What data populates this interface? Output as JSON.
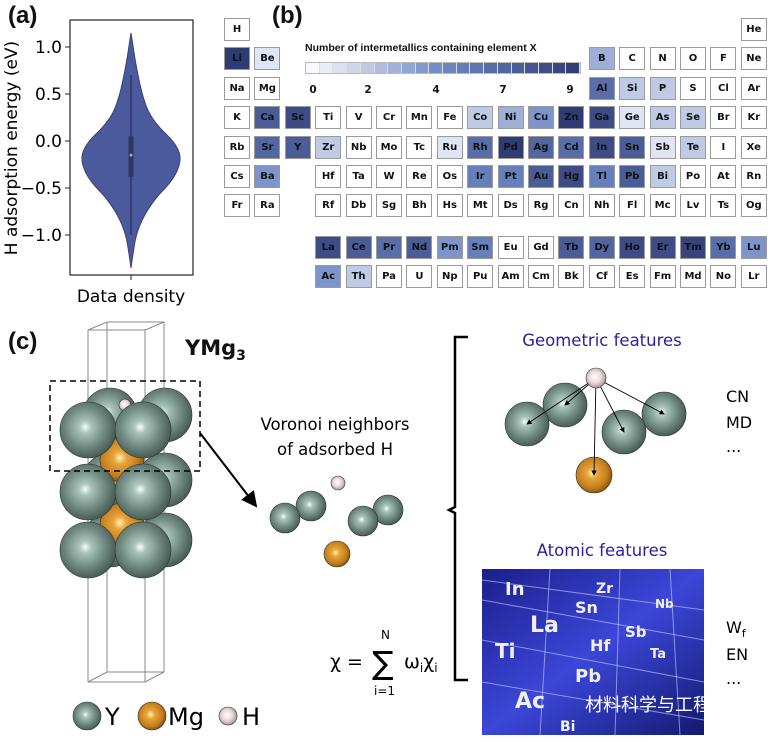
{
  "panels": {
    "a": "(a)",
    "b": "(b)",
    "c": "(c)"
  },
  "chart_data": {
    "type": "violin",
    "ylabel": "H adsorption energy (eV)",
    "xlabel": "Data density",
    "yticks": [
      "1.0",
      "0.5",
      "0.0",
      "−0.5",
      "−1.0"
    ],
    "ytick_values": [
      1.0,
      0.5,
      0.0,
      -0.5,
      -1.0
    ],
    "ylim": [
      -1.45,
      1.3
    ],
    "energy_range": [
      -1.35,
      1.15
    ],
    "median": -0.15,
    "iqr": [
      -0.38,
      0.05
    ],
    "whiskers": [
      -1.0,
      0.7
    ],
    "density_profile": [
      {
        "y": -1.35,
        "d": 0.0
      },
      {
        "y": -1.2,
        "d": 0.04
      },
      {
        "y": -1.0,
        "d": 0.1
      },
      {
        "y": -0.8,
        "d": 0.25
      },
      {
        "y": -0.6,
        "d": 0.5
      },
      {
        "y": -0.45,
        "d": 0.78
      },
      {
        "y": -0.3,
        "d": 0.95
      },
      {
        "y": -0.15,
        "d": 1.0
      },
      {
        "y": 0.0,
        "d": 0.85
      },
      {
        "y": 0.15,
        "d": 0.55
      },
      {
        "y": 0.3,
        "d": 0.35
      },
      {
        "y": 0.5,
        "d": 0.22
      },
      {
        "y": 0.7,
        "d": 0.14
      },
      {
        "y": 0.9,
        "d": 0.07
      },
      {
        "y": 1.05,
        "d": 0.03
      },
      {
        "y": 1.15,
        "d": 0.0
      }
    ],
    "color": "#4a5a9c"
  },
  "periodic_table": {
    "colorbar_title": "Number of intermetallics containing element X",
    "colorbar_ticks": [
      "0",
      "2",
      "4",
      "7",
      "9"
    ],
    "colorbar_tick_values": [
      0,
      2,
      4,
      7,
      9
    ],
    "colorbar_max": 9,
    "color_low": "#ffffff",
    "color_high": "#2f3b73",
    "rows": [
      [
        "H",
        "",
        "",
        "",
        "",
        "",
        "",
        "",
        "",
        "",
        "",
        "",
        "",
        "",
        "",
        "",
        "",
        "He"
      ],
      [
        "Li",
        "Be",
        "",
        "",
        "",
        "",
        "",
        "",
        "",
        "",
        "",
        "",
        "B",
        "C",
        "N",
        "O",
        "F",
        "Ne"
      ],
      [
        "Na",
        "Mg",
        "",
        "",
        "",
        "",
        "",
        "",
        "",
        "",
        "",
        "",
        "Al",
        "Si",
        "P",
        "S",
        "Cl",
        "Ar"
      ],
      [
        "K",
        "Ca",
        "Sc",
        "Ti",
        "V",
        "Cr",
        "Mn",
        "Fe",
        "Co",
        "Ni",
        "Cu",
        "Zn",
        "Ga",
        "Ge",
        "As",
        "Se",
        "Br",
        "Kr"
      ],
      [
        "Rb",
        "Sr",
        "Y",
        "Zr",
        "Nb",
        "Mo",
        "Tc",
        "Ru",
        "Rh",
        "Pd",
        "Ag",
        "Cd",
        "In",
        "Sn",
        "Sb",
        "Te",
        "I",
        "Xe"
      ],
      [
        "Cs",
        "Ba",
        "",
        "Hf",
        "Ta",
        "W",
        "Re",
        "Os",
        "Ir",
        "Pt",
        "Au",
        "Hg",
        "Tl",
        "Pb",
        "Bi",
        "Po",
        "At",
        "Rn"
      ],
      [
        "Fr",
        "Ra",
        "",
        "Rf",
        "Db",
        "Sg",
        "Bh",
        "Hs",
        "Mt",
        "Ds",
        "Rg",
        "Cn",
        "Nh",
        "Fl",
        "Mc",
        "Lv",
        "Ts",
        "Og"
      ]
    ],
    "lanthanides": [
      "La",
      "Ce",
      "Pr",
      "Nd",
      "Pm",
      "Sm",
      "Eu",
      "Gd",
      "Tb",
      "Dy",
      "Ho",
      "Er",
      "Tm",
      "Yb",
      "Lu"
    ],
    "actinides": [
      "Ac",
      "Th",
      "Pa",
      "U",
      "Np",
      "Pu",
      "Am",
      "Cm",
      "Bk",
      "Cf",
      "Es",
      "Fm",
      "Md",
      "No",
      "Lr"
    ],
    "values": {
      "Li": 9,
      "Be": 1,
      "Ca": 7,
      "Sc": 8,
      "Sr": 6.5,
      "Y": 7,
      "Ba": 4,
      "Zr": 2,
      "Ru": 1,
      "Co": 2,
      "Ni": 3,
      "Cu": 4,
      "Zn": 9,
      "Rh": 6,
      "Pd": 9,
      "Ag": 6.5,
      "Cd": 6,
      "Ir": 5,
      "Pt": 5,
      "Au": 7,
      "Hg": 8,
      "B": 3,
      "Al": 6,
      "Si": 2,
      "P": 2,
      "Ga": 8,
      "Ge": 1,
      "As": 2,
      "Se": 2,
      "In": 8,
      "Sn": 7,
      "Sb": 1,
      "Te": 2,
      "Tl": 5,
      "Pb": 7,
      "Bi": 2,
      "La": 8,
      "Ce": 7,
      "Pr": 6,
      "Nd": 7,
      "Pm": 4,
      "Sm": 5,
      "Tb": 7,
      "Dy": 6.5,
      "Ho": 8,
      "Er": 8,
      "Tm": 8.5,
      "Yb": 6,
      "Lu": 4,
      "Ac": 4,
      "Th": 2
    }
  },
  "panel_c": {
    "compound": "YMg",
    "compound_sub": "3",
    "voronoi_label_1": "Voronoi neighbors",
    "voronoi_label_2": "of adsorbed H",
    "geometric_title": "Geometric features",
    "geometric_items": [
      "CN",
      "MD",
      "..."
    ],
    "atomic_title": "Atomic features",
    "atomic_items": {
      "wf": "W",
      "wf_sub": "f",
      "en": "EN",
      "more": "..."
    },
    "formula": {
      "lhs": "χ =",
      "sum": "∑",
      "upper": "N",
      "lower": "i=1",
      "term": "ω",
      "term_sub": "i",
      "term2": "χ",
      "term2_sub": "i"
    },
    "image_labels": [
      "In",
      "Zr",
      "Sn",
      "Nb",
      "La",
      "Sb",
      "Hf",
      "Ti",
      "Ta",
      "Pb",
      "Bi",
      "Ac"
    ],
    "title_color": "#2a1fa0",
    "legend": [
      {
        "label": "Y",
        "color": "#6e8880"
      },
      {
        "label": "Mg",
        "color": "#d08a22"
      },
      {
        "label": "H",
        "color": "#e6d2d4"
      }
    ],
    "watermark": "材料科学与工程"
  }
}
